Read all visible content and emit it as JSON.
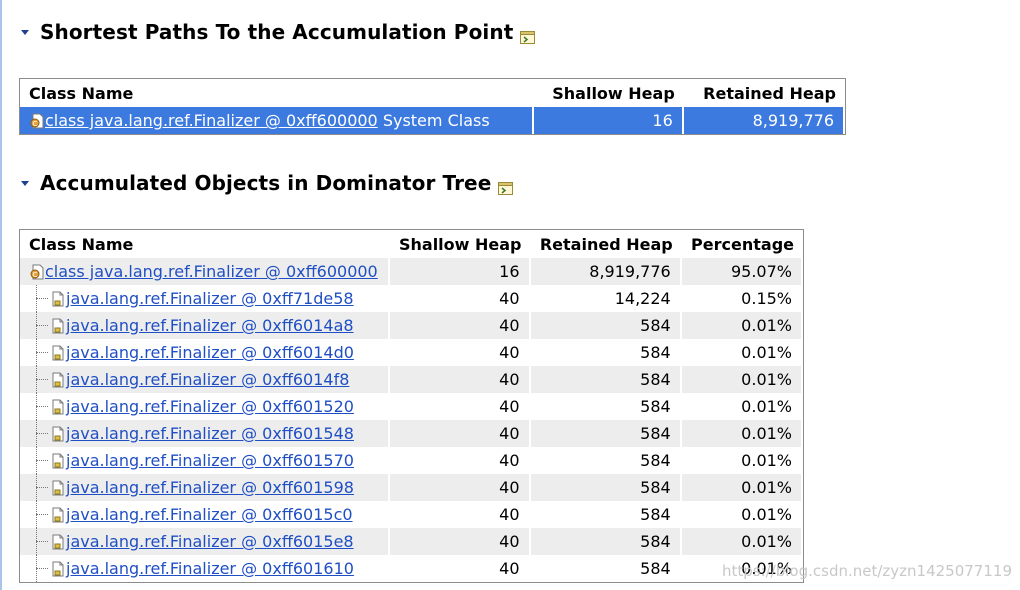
{
  "section1": {
    "title": "Shortest Paths To the Accumulation Point",
    "columns": [
      "Class Name",
      "Shallow Heap",
      "Retained Heap"
    ],
    "rows": [
      {
        "name": "class java.lang.ref.Finalizer @ 0xff600000",
        "suffix": " System Class",
        "shallow": "16",
        "retained": "8,919,776",
        "selected": true
      }
    ]
  },
  "section2": {
    "title": "Accumulated Objects in Dominator Tree",
    "columns": [
      "Class Name",
      "Shallow Heap",
      "Retained Heap",
      "Percentage"
    ],
    "rows": [
      {
        "name": "class java.lang.ref.Finalizer @ 0xff600000",
        "shallow": "16",
        "retained": "8,919,776",
        "pct": "95.07%",
        "child": false
      },
      {
        "name": "java.lang.ref.Finalizer @ 0xff71de58",
        "shallow": "40",
        "retained": "14,224",
        "pct": "0.15%",
        "child": true
      },
      {
        "name": "java.lang.ref.Finalizer @ 0xff6014a8",
        "shallow": "40",
        "retained": "584",
        "pct": "0.01%",
        "child": true
      },
      {
        "name": "java.lang.ref.Finalizer @ 0xff6014d0",
        "shallow": "40",
        "retained": "584",
        "pct": "0.01%",
        "child": true
      },
      {
        "name": "java.lang.ref.Finalizer @ 0xff6014f8",
        "shallow": "40",
        "retained": "584",
        "pct": "0.01%",
        "child": true
      },
      {
        "name": "java.lang.ref.Finalizer @ 0xff601520",
        "shallow": "40",
        "retained": "584",
        "pct": "0.01%",
        "child": true
      },
      {
        "name": "java.lang.ref.Finalizer @ 0xff601548",
        "shallow": "40",
        "retained": "584",
        "pct": "0.01%",
        "child": true
      },
      {
        "name": "java.lang.ref.Finalizer @ 0xff601570",
        "shallow": "40",
        "retained": "584",
        "pct": "0.01%",
        "child": true
      },
      {
        "name": "java.lang.ref.Finalizer @ 0xff601598",
        "shallow": "40",
        "retained": "584",
        "pct": "0.01%",
        "child": true
      },
      {
        "name": "java.lang.ref.Finalizer @ 0xff6015c0",
        "shallow": "40",
        "retained": "584",
        "pct": "0.01%",
        "child": true
      },
      {
        "name": "java.lang.ref.Finalizer @ 0xff6015e8",
        "shallow": "40",
        "retained": "584",
        "pct": "0.01%",
        "child": true
      },
      {
        "name": "java.lang.ref.Finalizer @ 0xff601610",
        "shallow": "40",
        "retained": "584",
        "pct": "0.01%",
        "child": true
      }
    ]
  },
  "watermark": "https://blog.csdn.net/zyzn1425077119",
  "colors": {
    "selection": "#3c7ae0",
    "link": "#1f4fc4",
    "alt_row": "#ededed"
  }
}
